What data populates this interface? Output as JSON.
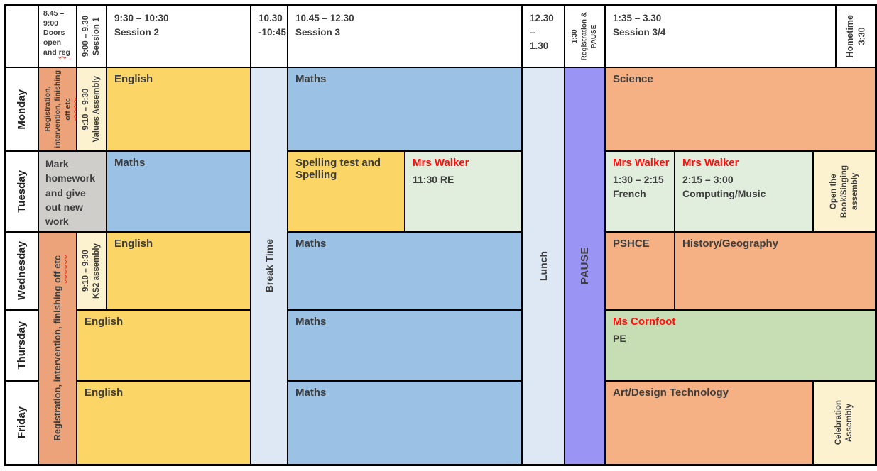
{
  "colors": {
    "orange_session": "#f5b183",
    "orange_registration": "#eca379",
    "yellow_session": "#fbd566",
    "blue_session": "#9bc2e4",
    "light_blue_break": "#dee8f5",
    "cream_assembly": "#fdf2d0",
    "light_green_session": "#e2eedd",
    "green_pe": "#c7deb4",
    "gray_task": "#d0cecb",
    "purple_pause": "#9a94f5",
    "teacher_red": "#ff0f0c",
    "ink": "#3d3d3d",
    "border": "#000000"
  },
  "header": {
    "doors_time_text": "8.45 – 9:00 Doors open and",
    "doors_misspelled": "reg",
    "session1": [
      "9:00 – 9.30",
      "Session 1"
    ],
    "session2": [
      "9:30 – 10:30",
      "Session 2"
    ],
    "break_time": [
      "10.30",
      "-10:45"
    ],
    "session3": [
      "10.45 – 12.30",
      "Session 3"
    ],
    "lunch_time": [
      "12.30 –",
      "1.30"
    ],
    "pause": [
      "1:30",
      "Registration &",
      "PAUSE"
    ],
    "session34": [
      "1:35 – 3.30",
      "Session 3/4"
    ],
    "hometime": [
      "Hometime",
      "3:30"
    ]
  },
  "days": {
    "monday": "Monday",
    "tuesday": "Tuesday",
    "wednesday": "Wednesday",
    "thursday": "Thursday",
    "friday": "Friday"
  },
  "merged": {
    "break_label": "Break Time",
    "lunch_label": "Lunch",
    "pause_label": "PAUSE"
  },
  "monday": {
    "registration_lines": [
      "Registration,",
      "intervention, finishing"
    ],
    "registration_misspelled": "off etc",
    "assembly": [
      "9:10 – 9:30",
      "Values Assembly"
    ],
    "session2": "English",
    "session3": "Maths",
    "session34": "Science"
  },
  "tuesday": {
    "morning_task": "Mark homework and give out new work",
    "session2": "Maths",
    "session3a": "Spelling test and Spelling",
    "session3b_teacher": "Mrs Walker",
    "session3b_detail": "11:30 RE",
    "session34a_teacher": "Mrs Walker",
    "session34a_time": "1:30 – 2:15",
    "session34a_subject": "French",
    "session34b_teacher": "Mrs Walker",
    "session34b_time": "2:15 – 3:00",
    "session34b_subject": "Computing/Music",
    "assembly": [
      "Open the",
      "Book/Singing",
      "assembly"
    ]
  },
  "wed_to_fri": {
    "registration_text": "Registration, intervention, finishing",
    "registration_misspelled": "off etc"
  },
  "wednesday": {
    "assembly": [
      "9:10 – 9:30",
      "KS2 assembly"
    ],
    "session2": "English",
    "session3": "Maths",
    "session34a": "PSHCE",
    "session34b": "History/Geography"
  },
  "thursday": {
    "session12": "English",
    "session3": "Maths",
    "session34_teacher": "Ms Cornfoot",
    "session34_subject": "PE"
  },
  "friday": {
    "session12": "English",
    "session3": "Maths",
    "session34a": "Art/Design Technology",
    "assembly": [
      "Celebration",
      "Assembly"
    ]
  }
}
